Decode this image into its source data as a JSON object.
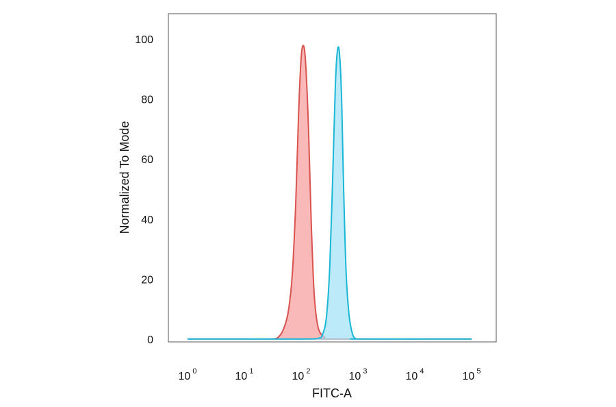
{
  "chart_data": {
    "type": "area",
    "xlabel": "FITC-A",
    "ylabel": "Normalized To Mode",
    "x_scale": "log",
    "xlim": [
      1,
      100000
    ],
    "ylim": [
      0,
      100
    ],
    "x_ticks": [
      {
        "value": 1,
        "base": "10",
        "exp": "0"
      },
      {
        "value": 10,
        "base": "10",
        "exp": "1"
      },
      {
        "value": 100,
        "base": "10",
        "exp": "2"
      },
      {
        "value": 1000,
        "base": "10",
        "exp": "3"
      },
      {
        "value": 10000,
        "base": "10",
        "exp": "4"
      },
      {
        "value": 100000,
        "base": "10",
        "exp": "5"
      }
    ],
    "y_ticks": [
      {
        "value": 0,
        "label": "0"
      },
      {
        "value": 20,
        "label": "20"
      },
      {
        "value": 40,
        "label": "40"
      },
      {
        "value": 60,
        "label": "60"
      },
      {
        "value": 80,
        "label": "80"
      },
      {
        "value": 100,
        "label": "100"
      }
    ],
    "grid": false,
    "legend": "none",
    "series": [
      {
        "color": "#d9534f",
        "fill": "#f7a1a0",
        "x": [
          1,
          10,
          30,
          40,
          50,
          60,
          70,
          80,
          90,
          100,
          110,
          120,
          135,
          150,
          170,
          200,
          260,
          350,
          100000
        ],
        "y": [
          0.3,
          0.3,
          0.3,
          1,
          4,
          10,
          22,
          45,
          75,
          94,
          98,
          92,
          70,
          40,
          15,
          4,
          1,
          0.3,
          0.3
        ]
      },
      {
        "color": "#1ab6d6",
        "fill": "#a6e3f5",
        "x": [
          1,
          10,
          100,
          200,
          240,
          280,
          320,
          360,
          400,
          440,
          480,
          520,
          560,
          620,
          700,
          800,
          900,
          1100,
          100000
        ],
        "y": [
          0.3,
          0.3,
          0.3,
          0.5,
          2,
          8,
          25,
          55,
          85,
          97,
          94,
          78,
          50,
          22,
          8,
          2,
          0.5,
          0.3,
          0.3
        ]
      }
    ]
  }
}
